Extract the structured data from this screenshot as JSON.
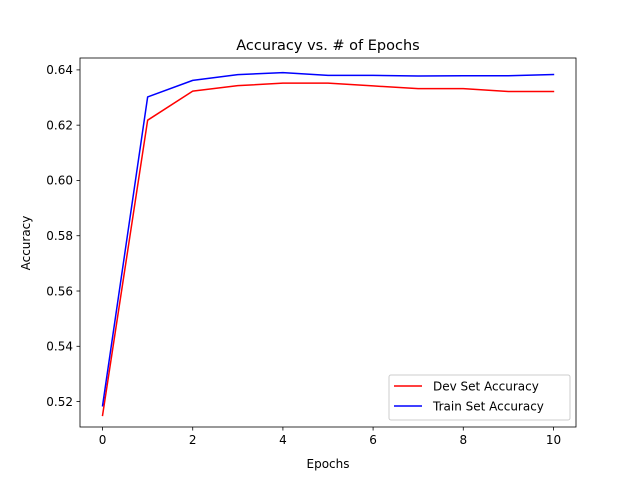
{
  "chart_data": {
    "type": "line",
    "title": "Accuracy vs. # of Epochs",
    "xlabel": "Epochs",
    "ylabel": "Accuracy",
    "xlim": [
      -0.5,
      10.5
    ],
    "ylim": [
      0.5108,
      0.6443
    ],
    "xticks": [
      0,
      2,
      4,
      6,
      8,
      10
    ],
    "yticks": [
      0.52,
      0.54,
      0.56,
      0.58,
      0.6,
      0.62,
      0.64
    ],
    "xtick_labels": [
      "0",
      "2",
      "4",
      "6",
      "8",
      "10"
    ],
    "ytick_labels": [
      "0.52",
      "0.54",
      "0.56",
      "0.58",
      "0.60",
      "0.62",
      "0.64"
    ],
    "grid": false,
    "legend_position": "lower-right",
    "x": [
      0,
      1,
      2,
      3,
      4,
      5,
      6,
      7,
      8,
      9,
      10
    ],
    "series": [
      {
        "name": "Dev Set Accuracy",
        "color": "#ff0000",
        "values": [
          0.515,
          0.6218,
          0.6323,
          0.6343,
          0.6352,
          0.6352,
          0.6342,
          0.6332,
          0.6332,
          0.6322,
          0.6322
        ]
      },
      {
        "name": "Train Set Accuracy",
        "color": "#0000ff",
        "values": [
          0.5185,
          0.6302,
          0.6362,
          0.6383,
          0.639,
          0.638,
          0.638,
          0.6378,
          0.6379,
          0.6379,
          0.6383
        ]
      }
    ]
  }
}
